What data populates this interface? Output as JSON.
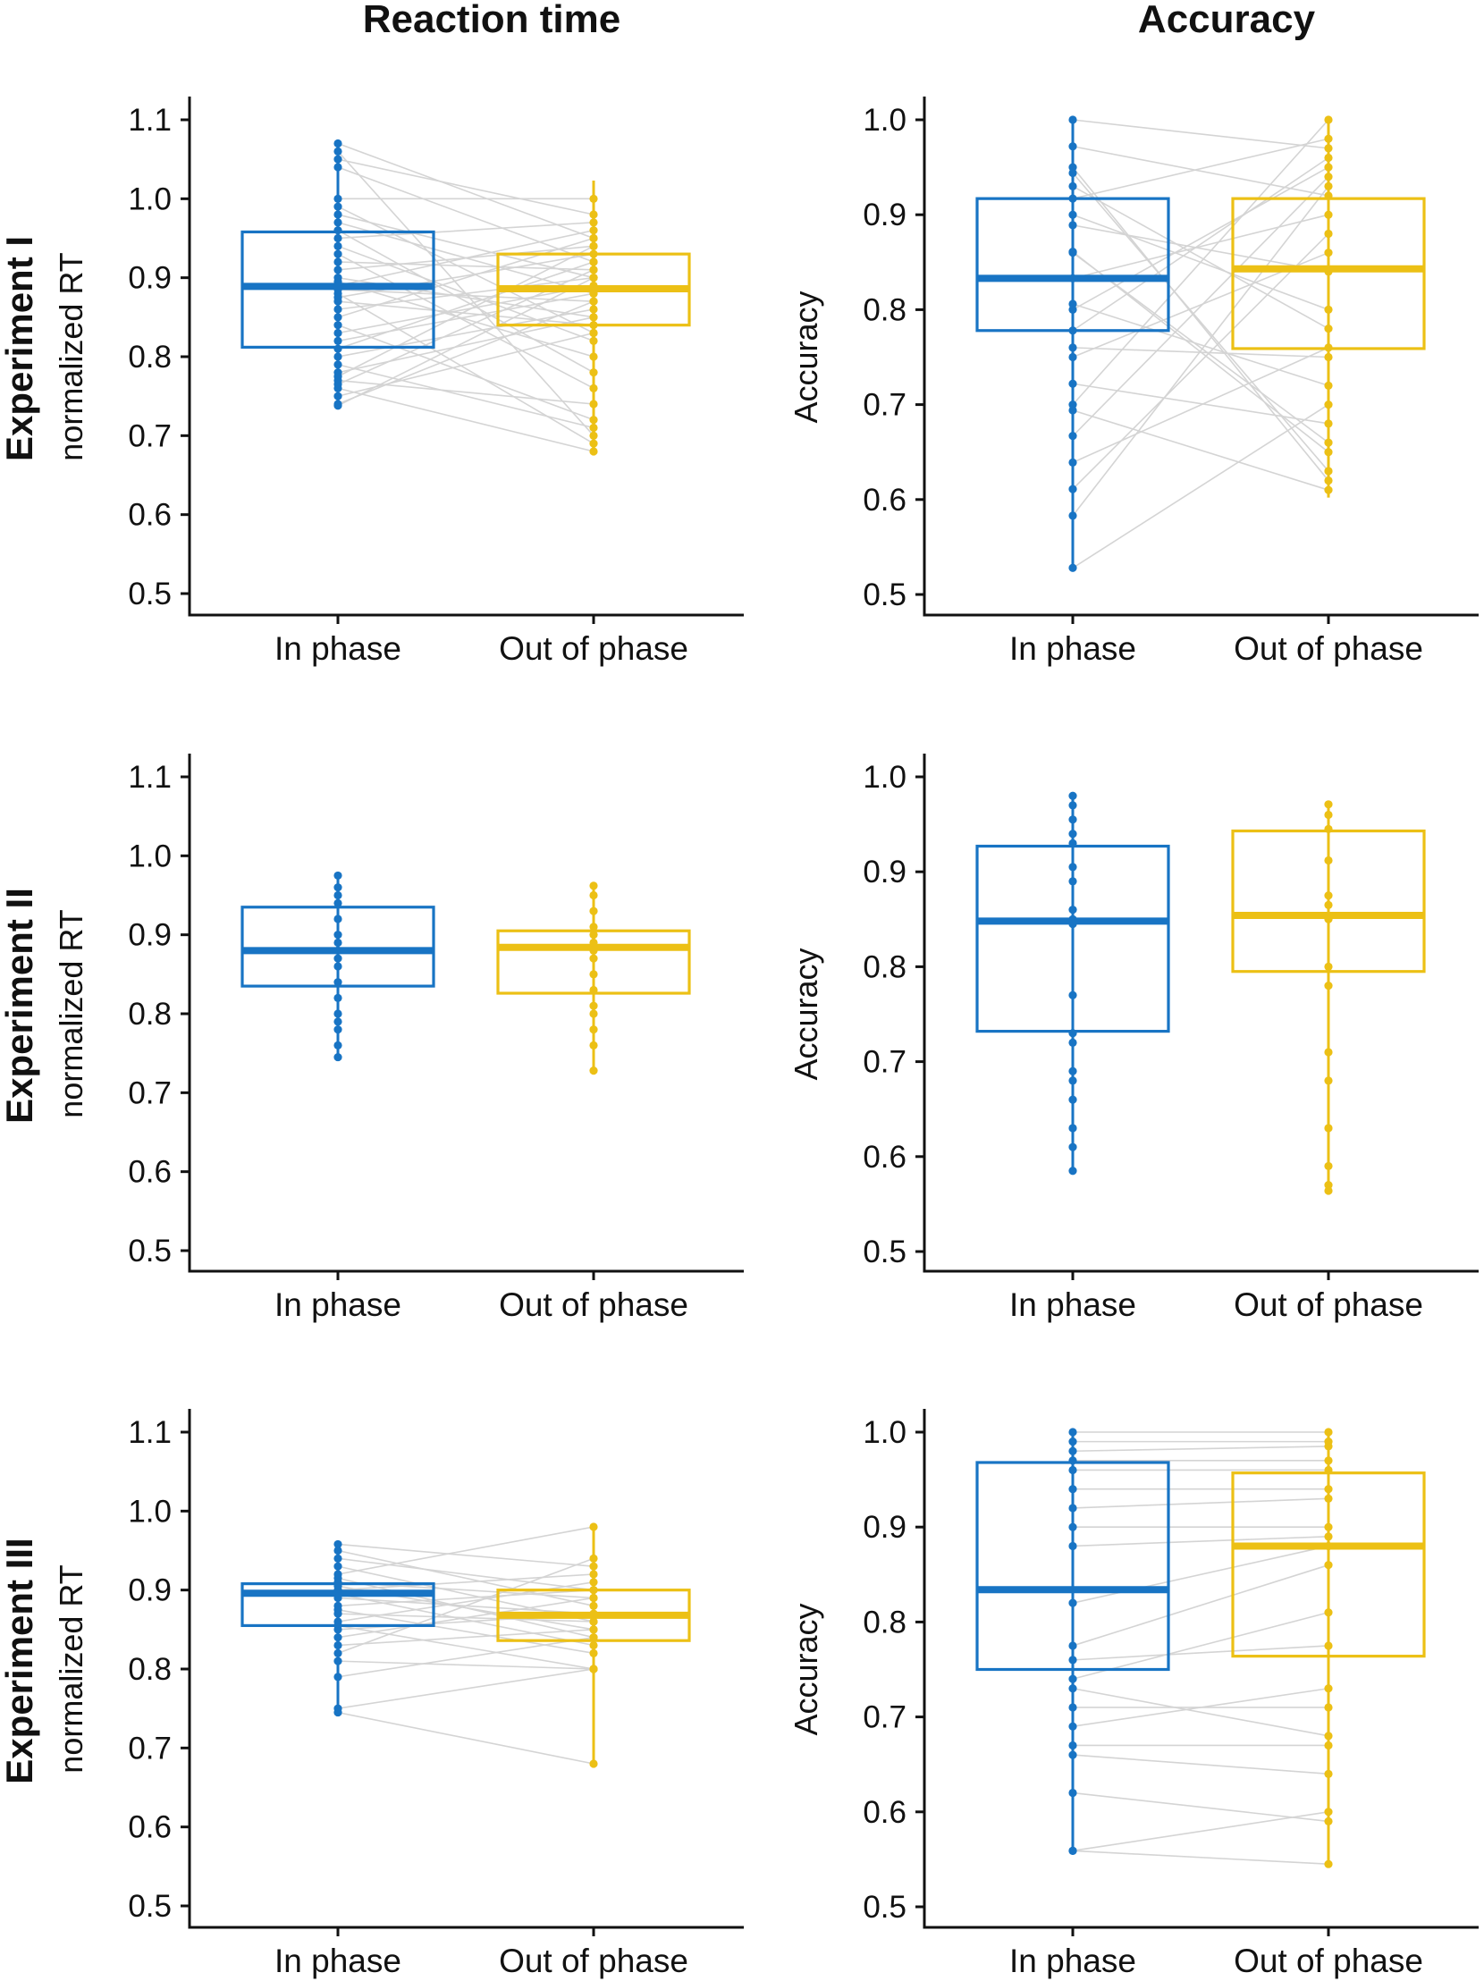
{
  "column_titles": [
    "Reaction time",
    "Accuracy"
  ],
  "row_labels": [
    "Experiment I",
    "Experiment II",
    "Experiment III"
  ],
  "colors": {
    "in_phase": "#1874c4",
    "out_of_phase": "#ecc015",
    "pair_line": "#d4d4d4",
    "axis": "#111111"
  },
  "chart_data": [
    {
      "type": "box",
      "experiment": "Experiment I",
      "measure": "Reaction time",
      "ylabel": "normalized RT",
      "ylim": [
        0.5,
        1.1
      ],
      "yticks": [
        "0.5",
        "0.6",
        "0.7",
        "0.8",
        "0.9",
        "1.0",
        "1.1"
      ],
      "categories": [
        "In phase",
        "Out of phase"
      ],
      "boxes": [
        {
          "category": "In phase",
          "q1": 0.812,
          "median": 0.889,
          "q3": 0.958,
          "min": 0.738,
          "max": 1.07
        },
        {
          "category": "Out of phase",
          "q1": 0.84,
          "median": 0.886,
          "q3": 0.93,
          "min": 0.678,
          "max": 1.023
        }
      ],
      "pairs": [
        [
          1.07,
          0.95
        ],
        [
          1.06,
          0.7
        ],
        [
          1.05,
          0.98
        ],
        [
          1.04,
          0.92
        ],
        [
          1.0,
          1.0
        ],
        [
          0.99,
          0.83
        ],
        [
          0.98,
          0.9
        ],
        [
          0.97,
          0.88
        ],
        [
          0.96,
          0.78
        ],
        [
          0.95,
          0.97
        ],
        [
          0.94,
          0.82
        ],
        [
          0.93,
          0.76
        ],
        [
          0.92,
          0.91
        ],
        [
          0.91,
          0.94
        ],
        [
          0.9,
          0.85
        ],
        [
          0.895,
          0.8
        ],
        [
          0.89,
          0.96
        ],
        [
          0.885,
          0.87
        ],
        [
          0.88,
          0.69
        ],
        [
          0.875,
          0.93
        ],
        [
          0.87,
          0.84
        ],
        [
          0.86,
          0.9
        ],
        [
          0.85,
          0.95
        ],
        [
          0.84,
          0.72
        ],
        [
          0.83,
          0.89
        ],
        [
          0.82,
          0.88
        ],
        [
          0.81,
          0.92
        ],
        [
          0.8,
          0.86
        ],
        [
          0.79,
          0.71
        ],
        [
          0.78,
          0.85
        ],
        [
          0.775,
          0.94
        ],
        [
          0.77,
          0.74
        ],
        [
          0.765,
          0.91
        ],
        [
          0.76,
          0.68
        ],
        [
          0.75,
          0.83
        ],
        [
          0.74,
          0.87
        ],
        [
          0.738,
          0.9
        ]
      ]
    },
    {
      "type": "box",
      "experiment": "Experiment I",
      "measure": "Accuracy",
      "ylabel": "Accuracy",
      "ylim": [
        0.5,
        1.0
      ],
      "yticks": [
        "0.5",
        "0.6",
        "0.7",
        "0.8",
        "0.9",
        "1.0"
      ],
      "categories": [
        "In phase",
        "Out of phase"
      ],
      "boxes": [
        {
          "category": "In phase",
          "q1": 0.778,
          "median": 0.833,
          "q3": 0.917,
          "min": 0.528,
          "max": 1.0
        },
        {
          "category": "Out of phase",
          "q1": 0.759,
          "median": 0.843,
          "q3": 0.917,
          "min": 0.602,
          "max": 1.0
        }
      ],
      "pairs": [
        [
          1.0,
          0.97
        ],
        [
          0.972,
          0.92
        ],
        [
          0.944,
          0.63
        ],
        [
          0.917,
          0.98
        ],
        [
          0.889,
          0.84
        ],
        [
          0.861,
          0.65
        ],
        [
          0.833,
          0.9
        ],
        [
          0.806,
          0.72
        ],
        [
          0.778,
          0.96
        ],
        [
          0.75,
          0.86
        ],
        [
          0.722,
          0.68
        ],
        [
          0.694,
          0.61
        ],
        [
          0.667,
          0.94
        ],
        [
          0.639,
          0.76
        ],
        [
          0.611,
          0.88
        ],
        [
          0.583,
          0.93
        ],
        [
          0.528,
          0.7
        ],
        [
          0.95,
          0.62
        ],
        [
          0.9,
          0.8
        ],
        [
          0.8,
          0.95
        ],
        [
          0.76,
          0.75
        ],
        [
          0.7,
          1.0
        ],
        [
          0.86,
          0.66
        ],
        [
          0.93,
          0.78
        ]
      ]
    },
    {
      "type": "box",
      "experiment": "Experiment II",
      "measure": "Reaction time",
      "ylabel": "normalized RT",
      "ylim": [
        0.5,
        1.1
      ],
      "yticks": [
        "0.5",
        "0.6",
        "0.7",
        "0.8",
        "0.9",
        "1.0",
        "1.1"
      ],
      "categories": [
        "In phase",
        "Out of phase"
      ],
      "boxes": [
        {
          "category": "In phase",
          "q1": 0.835,
          "median": 0.88,
          "q3": 0.935,
          "min": 0.745,
          "max": 0.975
        },
        {
          "category": "Out of phase",
          "q1": 0.826,
          "median": 0.884,
          "q3": 0.905,
          "min": 0.728,
          "max": 0.962
        }
      ],
      "pairs": [
        [
          0.975,
          null
        ],
        [
          0.96,
          null
        ],
        [
          0.95,
          null
        ],
        [
          0.94,
          null
        ],
        [
          0.92,
          null
        ],
        [
          0.9,
          null
        ],
        [
          0.89,
          null
        ],
        [
          0.88,
          null
        ],
        [
          0.87,
          null
        ],
        [
          0.86,
          null
        ],
        [
          0.84,
          null
        ],
        [
          0.82,
          null
        ],
        [
          0.8,
          null
        ],
        [
          0.79,
          null
        ],
        [
          0.78,
          null
        ],
        [
          0.76,
          null
        ],
        [
          0.745,
          null
        ],
        [
          null,
          0.962
        ],
        [
          null,
          0.95
        ],
        [
          null,
          0.93
        ],
        [
          null,
          0.91
        ],
        [
          null,
          0.9
        ],
        [
          null,
          0.89
        ],
        [
          null,
          0.88
        ],
        [
          null,
          0.87
        ],
        [
          null,
          0.85
        ],
        [
          null,
          0.83
        ],
        [
          null,
          0.81
        ],
        [
          null,
          0.8
        ],
        [
          null,
          0.78
        ],
        [
          null,
          0.76
        ],
        [
          null,
          0.728
        ]
      ]
    },
    {
      "type": "box",
      "experiment": "Experiment II",
      "measure": "Accuracy",
      "ylabel": "Accuracy",
      "ylim": [
        0.5,
        1.0
      ],
      "yticks": [
        "0.5",
        "0.6",
        "0.7",
        "0.8",
        "0.9",
        "1.0"
      ],
      "categories": [
        "In phase",
        "Out of phase"
      ],
      "boxes": [
        {
          "category": "In phase",
          "q1": 0.732,
          "median": 0.848,
          "q3": 0.927,
          "min": 0.585,
          "max": 0.98
        },
        {
          "category": "Out of phase",
          "q1": 0.795,
          "median": 0.854,
          "q3": 0.943,
          "min": 0.564,
          "max": 0.971
        }
      ],
      "pairs": [
        [
          0.98,
          null
        ],
        [
          0.97,
          null
        ],
        [
          0.955,
          null
        ],
        [
          0.94,
          null
        ],
        [
          0.93,
          null
        ],
        [
          0.905,
          null
        ],
        [
          0.89,
          null
        ],
        [
          0.86,
          null
        ],
        [
          0.85,
          null
        ],
        [
          0.845,
          null
        ],
        [
          0.77,
          null
        ],
        [
          0.73,
          null
        ],
        [
          0.72,
          null
        ],
        [
          0.69,
          null
        ],
        [
          0.68,
          null
        ],
        [
          0.66,
          null
        ],
        [
          0.63,
          null
        ],
        [
          0.61,
          null
        ],
        [
          0.585,
          null
        ],
        [
          null,
          0.971
        ],
        [
          null,
          0.96
        ],
        [
          null,
          0.945
        ],
        [
          null,
          0.912
        ],
        [
          null,
          0.875
        ],
        [
          null,
          0.865
        ],
        [
          null,
          0.85
        ],
        [
          null,
          0.8
        ],
        [
          null,
          0.78
        ],
        [
          null,
          0.71
        ],
        [
          null,
          0.68
        ],
        [
          null,
          0.63
        ],
        [
          null,
          0.59
        ],
        [
          null,
          0.57
        ],
        [
          null,
          0.564
        ]
      ]
    },
    {
      "type": "box",
      "experiment": "Experiment III",
      "measure": "Reaction time",
      "ylabel": "normalized RT",
      "ylim": [
        0.5,
        1.1
      ],
      "yticks": [
        "0.5",
        "0.6",
        "0.7",
        "0.8",
        "0.9",
        "1.0",
        "1.1"
      ],
      "categories": [
        "In phase",
        "Out of phase"
      ],
      "boxes": [
        {
          "category": "In phase",
          "q1": 0.855,
          "median": 0.896,
          "q3": 0.908,
          "min": 0.741,
          "max": 0.958
        },
        {
          "category": "Out of phase",
          "q1": 0.836,
          "median": 0.868,
          "q3": 0.9,
          "min": 0.68,
          "max": 0.98
        }
      ],
      "pairs": [
        [
          0.958,
          0.93
        ],
        [
          0.95,
          0.88
        ],
        [
          0.94,
          0.9
        ],
        [
          0.93,
          0.86
        ],
        [
          0.92,
          0.98
        ],
        [
          0.915,
          0.84
        ],
        [
          0.91,
          0.89
        ],
        [
          0.905,
          0.85
        ],
        [
          0.9,
          0.92
        ],
        [
          0.895,
          0.83
        ],
        [
          0.89,
          0.87
        ],
        [
          0.88,
          0.9
        ],
        [
          0.875,
          0.82
        ],
        [
          0.87,
          0.86
        ],
        [
          0.86,
          0.91
        ],
        [
          0.855,
          0.8
        ],
        [
          0.85,
          0.87
        ],
        [
          0.84,
          0.89
        ],
        [
          0.83,
          0.85
        ],
        [
          0.82,
          0.94
        ],
        [
          0.81,
          0.8
        ],
        [
          0.79,
          0.84
        ],
        [
          0.75,
          0.8
        ],
        [
          0.745,
          0.68
        ]
      ]
    },
    {
      "type": "box",
      "experiment": "Experiment III",
      "measure": "Accuracy",
      "ylabel": "Accuracy",
      "ylim": [
        0.5,
        1.0
      ],
      "yticks": [
        "0.5",
        "0.6",
        "0.7",
        "0.8",
        "0.9",
        "1.0"
      ],
      "categories": [
        "In phase",
        "Out of phase"
      ],
      "boxes": [
        {
          "category": "In phase",
          "q1": 0.75,
          "median": 0.834,
          "q3": 0.968,
          "min": 0.559,
          "max": 1.0
        },
        {
          "category": "Out of phase",
          "q1": 0.764,
          "median": 0.88,
          "q3": 0.957,
          "min": 0.545,
          "max": 1.0
        }
      ],
      "pairs": [
        [
          1.0,
          1.0
        ],
        [
          0.99,
          0.99
        ],
        [
          0.98,
          0.985
        ],
        [
          0.97,
          0.97
        ],
        [
          0.96,
          0.96
        ],
        [
          0.94,
          0.94
        ],
        [
          0.92,
          0.93
        ],
        [
          0.9,
          0.9
        ],
        [
          0.88,
          0.89
        ],
        [
          0.82,
          0.88
        ],
        [
          0.775,
          0.86
        ],
        [
          0.76,
          0.775
        ],
        [
          0.74,
          0.81
        ],
        [
          0.73,
          0.68
        ],
        [
          0.71,
          0.71
        ],
        [
          0.69,
          0.73
        ],
        [
          0.67,
          0.67
        ],
        [
          0.66,
          0.64
        ],
        [
          0.62,
          0.59
        ],
        [
          0.559,
          0.545
        ],
        [
          0.559,
          0.6
        ]
      ]
    }
  ]
}
